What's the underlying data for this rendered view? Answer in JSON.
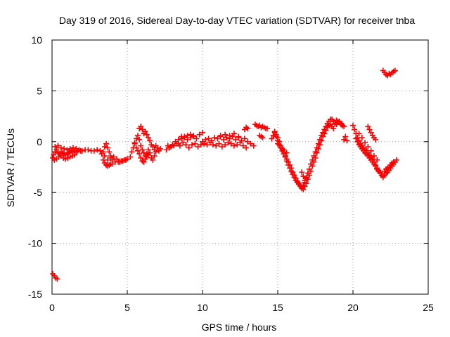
{
  "chart_data": {
    "type": "scatter",
    "title": "Day 319 of 2016, Sidereal Day-to-day VTEC variation (SDTVAR) for receiver tnba",
    "xlabel": "GPS time / hours",
    "ylabel": "SDTVAR / TECUs",
    "xlim": [
      0,
      25
    ],
    "ylim": [
      -15,
      10
    ],
    "xticks": [
      0,
      5,
      10,
      15,
      20,
      25
    ],
    "yticks": [
      -15,
      -10,
      -5,
      0,
      5,
      10
    ],
    "grid": true,
    "marker": "plus",
    "color": "#ff0000",
    "series": [
      {
        "name": "SDTVAR",
        "x": [
          0.05,
          0.15,
          0.25,
          0.35,
          0.05,
          0.1,
          0.2,
          0.3,
          0.4,
          0.5,
          0.6,
          0.7,
          0.8,
          0.9,
          1.0,
          1.1,
          1.2,
          1.3,
          1.4,
          1.5,
          1.6,
          1.7,
          1.8,
          1.9,
          2.0,
          2.2,
          2.4,
          2.6,
          2.8,
          3.0,
          3.2,
          3.4,
          3.5,
          3.6,
          3.7,
          3.8,
          3.9,
          4.0,
          4.2,
          4.4,
          4.6,
          4.8,
          5.0,
          5.2,
          0.15,
          0.3,
          0.45,
          0.6,
          0.75,
          0.9,
          1.05,
          1.2,
          1.35,
          1.5,
          0.2,
          0.4,
          0.6,
          0.8,
          1.0,
          1.2,
          1.4,
          1.6,
          3.4,
          3.5,
          3.6,
          3.7,
          3.8,
          3.9,
          4.0,
          3.3,
          3.5,
          3.7,
          3.9,
          4.1,
          4.3,
          4.5,
          4.7,
          4.9,
          5.3,
          5.4,
          5.5,
          5.6,
          5.7,
          5.8,
          5.9,
          6.0,
          6.1,
          6.2,
          6.3,
          6.4,
          6.5,
          6.6,
          6.7,
          6.8,
          6.9,
          5.5,
          5.6,
          5.7,
          5.8,
          5.9,
          6.0,
          6.1,
          6.2,
          6.3,
          6.4,
          6.5,
          6.6,
          6.7,
          6.8,
          5.8,
          5.9,
          6.0,
          6.1,
          6.2,
          6.3,
          6.4,
          6.9,
          7.0,
          7.1,
          7.2,
          7.6,
          7.8,
          8.0,
          8.2,
          8.4,
          8.6,
          8.8,
          9.0,
          9.2,
          9.4,
          9.6,
          9.8,
          10.0,
          7.7,
          7.9,
          8.1,
          8.3,
          8.5,
          8.7,
          8.9,
          9.1,
          9.3,
          9.5,
          9.7,
          9.9,
          8.4,
          8.6,
          8.8,
          9.0,
          9.2,
          9.4,
          10.0,
          10.2,
          10.4,
          10.6,
          10.8,
          11.0,
          11.2,
          11.4,
          11.6,
          11.8,
          12.0,
          12.2,
          12.4,
          12.6,
          12.8,
          13.0,
          13.2,
          13.4,
          10.1,
          10.3,
          10.5,
          10.7,
          10.9,
          11.1,
          11.3,
          11.5,
          11.7,
          11.9,
          12.1,
          12.3,
          12.5,
          12.7,
          12.9,
          11.2,
          11.5,
          11.8,
          12.1,
          12.4,
          12.8,
          12.9,
          13.0,
          13.5,
          13.6,
          13.7,
          13.8,
          13.9,
          14.0,
          14.1,
          14.2,
          14.3,
          13.8,
          13.9,
          14.0,
          14.6,
          14.7,
          14.8,
          14.9,
          15.0,
          15.1,
          15.2,
          15.3,
          15.4,
          15.5,
          15.6,
          15.7,
          15.8,
          15.9,
          16.0,
          16.1,
          16.2,
          16.3,
          16.4,
          16.5,
          16.6,
          16.7,
          16.8,
          16.9,
          17.0,
          17.1,
          17.2,
          17.3,
          17.4,
          17.5,
          17.6,
          17.7,
          17.8,
          17.9,
          18.0,
          18.1,
          18.2,
          18.3,
          18.4,
          18.5,
          18.6,
          18.7,
          18.8,
          18.9,
          19.0,
          19.1,
          19.2,
          19.3,
          19.4,
          14.8,
          14.9,
          15.0,
          15.1,
          15.2,
          15.3,
          15.4,
          15.5,
          15.6,
          15.7,
          15.8,
          15.9,
          16.0,
          16.1,
          16.2,
          16.3,
          16.4,
          16.5,
          16.6,
          16.7,
          16.8,
          16.9,
          17.0,
          17.1,
          17.2,
          17.3,
          17.4,
          17.5,
          17.6,
          17.7,
          17.8,
          17.9,
          18.0,
          18.1,
          18.2,
          18.3,
          18.4,
          18.5,
          18.6,
          18.7,
          15.0,
          15.2,
          15.4,
          15.6,
          16.6,
          16.7,
          16.8,
          16.9,
          17.0,
          18.8,
          18.9,
          19.0,
          19.1,
          19.2,
          19.3,
          19.4,
          19.5,
          19.6,
          20.0,
          20.1,
          20.2,
          20.3,
          20.4,
          20.5,
          20.6,
          20.7,
          20.8,
          20.9,
          21.0,
          21.1,
          21.2,
          21.3,
          21.4,
          21.5,
          21.6,
          21.7,
          21.8,
          20.2,
          20.3,
          20.4,
          20.5,
          20.6,
          20.7,
          20.8,
          20.9,
          21.0,
          21.1,
          21.2,
          21.3,
          21.4,
          21.5,
          21.6,
          21.7,
          20.4,
          20.6,
          20.8,
          21.0,
          21.2,
          21.4,
          21.6,
          21.0,
          21.1,
          21.2,
          21.3,
          21.4,
          21.5,
          21.6,
          21.7,
          21.8,
          21.9,
          22.0,
          22.0,
          22.1,
          22.2,
          22.3,
          22.4,
          22.5,
          22.6,
          22.7,
          22.8,
          22.9,
          22.1,
          22.2,
          22.3,
          22.4,
          22.5,
          22.6,
          22.7,
          22.0,
          22.1,
          22.2,
          22.3,
          22.4,
          22.5,
          22.6,
          22.7,
          22.8
        ],
        "y": [
          -13.0,
          -13.2,
          -13.4,
          -13.5,
          -1.6,
          -1.3,
          -1.0,
          -0.8,
          -1.1,
          -1.2,
          -1.0,
          -1.1,
          -1.2,
          -1.3,
          -1.2,
          -1.1,
          -1.0,
          -0.9,
          -0.9,
          -1.0,
          -1.0,
          -0.9,
          -0.8,
          -0.9,
          -0.9,
          -0.8,
          -0.8,
          -0.9,
          -0.9,
          -0.8,
          -0.9,
          -1.0,
          -0.5,
          -0.2,
          -0.6,
          -1.0,
          -1.4,
          -1.8,
          -2.0,
          -2.0,
          -1.9,
          -1.8,
          -1.7,
          -1.5,
          -1.8,
          -1.7,
          -1.5,
          -1.4,
          -1.6,
          -1.7,
          -1.6,
          -1.5,
          -1.4,
          -1.3,
          -0.5,
          -0.4,
          -0.6,
          -0.7,
          -0.8,
          -0.7,
          -0.6,
          -0.7,
          -1.8,
          -2.1,
          -2.3,
          -2.4,
          -2.3,
          -2.2,
          -2.2,
          -1.2,
          -1.4,
          -1.8,
          -1.6,
          -1.5,
          -1.7,
          -2.0,
          -1.9,
          -1.8,
          -1.0,
          -0.6,
          -0.1,
          0.3,
          0.6,
          1.3,
          1.5,
          1.2,
          0.8,
          1.0,
          0.7,
          0.4,
          0.1,
          -0.3,
          -0.5,
          -0.8,
          -1.0,
          -0.2,
          -0.6,
          -0.9,
          -1.2,
          -1.6,
          -1.9,
          -2.0,
          -1.7,
          -1.5,
          -1.3,
          -1.1,
          -1.6,
          -1.8,
          -1.4,
          0.2,
          -0.4,
          -0.8,
          -1.1,
          -1.4,
          -1.2,
          -0.8,
          -0.4,
          -0.6,
          -0.9,
          -0.7,
          -0.8,
          -0.6,
          -0.3,
          0.0,
          -0.2,
          0.3,
          0.5,
          0.2,
          0.4,
          0.6,
          0.3,
          0.7,
          0.9,
          -0.4,
          -0.5,
          -0.4,
          -0.2,
          -0.4,
          -0.1,
          -0.3,
          -0.6,
          -0.3,
          -0.2,
          -0.5,
          -0.3,
          0.2,
          0.5,
          0.4,
          0.6,
          0.7,
          0.5,
          0.0,
          0.2,
          0.3,
          0.1,
          0.4,
          0.3,
          0.5,
          0.2,
          0.4,
          0.3,
          0.5,
          0.2,
          0.4,
          0.1,
          0.3,
          0.0,
          -0.2,
          -0.4,
          -0.2,
          -0.3,
          -0.1,
          -0.3,
          -0.4,
          -0.2,
          -0.5,
          -0.3,
          -0.1,
          -0.2,
          -0.4,
          -0.3,
          -0.1,
          -0.4,
          -0.6,
          0.6,
          0.7,
          0.6,
          0.8,
          0.5,
          1.2,
          1.4,
          1.3,
          1.7,
          1.6,
          1.5,
          1.6,
          1.4,
          1.5,
          1.4,
          1.3,
          1.3,
          0.6,
          0.5,
          0.4,
          0.3,
          0.6,
          0.9,
          0.5,
          0.1,
          -0.3,
          -0.6,
          -0.9,
          -1.2,
          -1.5,
          -1.9,
          -2.3,
          -2.6,
          -2.9,
          -3.2,
          -3.5,
          -3.8,
          -4.0,
          -4.2,
          -4.4,
          -4.5,
          -4.3,
          -4.0,
          -3.6,
          -3.1,
          -2.7,
          -2.2,
          -1.8,
          -1.4,
          -1.0,
          -0.6,
          -0.2,
          0.2,
          0.6,
          0.9,
          1.2,
          1.5,
          1.8,
          2.0,
          2.2,
          2.2,
          2.0,
          1.8,
          1.7,
          1.9,
          2.0,
          1.8,
          1.6,
          1.5,
          1.0,
          0.7,
          0.4,
          0.0,
          -0.4,
          -0.7,
          -1.0,
          -1.4,
          -1.7,
          -2.0,
          -2.3,
          -2.6,
          -3.0,
          -3.3,
          -3.6,
          -3.9,
          -4.1,
          -4.3,
          -4.6,
          -4.7,
          -4.4,
          -4.1,
          -3.7,
          -3.3,
          -2.9,
          -2.4,
          -2.0,
          -1.6,
          -1.1,
          -0.7,
          -0.3,
          0.1,
          0.5,
          0.8,
          1.1,
          1.4,
          1.6,
          1.7,
          1.5,
          1.3,
          -0.2,
          -0.6,
          -0.8,
          -1.1,
          -3.0,
          -3.4,
          -3.8,
          -3.5,
          -3.1,
          1.8,
          2.1,
          2.0,
          1.9,
          1.7,
          1.6,
          0.2,
          0.5,
          0.1,
          1.6,
          1.2,
          0.8,
          0.4,
          0.1,
          -0.2,
          -0.4,
          -0.6,
          -0.8,
          -0.9,
          -1.1,
          -1.3,
          -1.5,
          -1.7,
          -2.0,
          -2.3,
          -2.6,
          -2.8,
          -3.0,
          0.3,
          0.0,
          -0.3,
          -0.5,
          -0.7,
          -0.9,
          -1.1,
          -1.2,
          -1.4,
          -1.6,
          -1.8,
          -2.0,
          -2.2,
          -2.4,
          -2.7,
          -2.9,
          0.8,
          0.4,
          -0.1,
          -0.5,
          -0.9,
          -1.4,
          -1.8,
          1.5,
          1.2,
          0.9,
          0.6,
          0.4,
          0.2,
          -2.6,
          -2.9,
          -3.1,
          -3.3,
          -3.4,
          -3.5,
          -3.3,
          -3.1,
          -3.0,
          -2.8,
          -2.6,
          -2.4,
          -2.2,
          -2.0,
          -1.8,
          -2.9,
          -2.7,
          -2.6,
          -2.5,
          -2.3,
          -2.1,
          -2.0,
          7.0,
          6.8,
          6.6,
          6.5,
          6.7,
          6.6,
          6.8,
          6.9,
          7.0
        ]
      }
    ]
  }
}
